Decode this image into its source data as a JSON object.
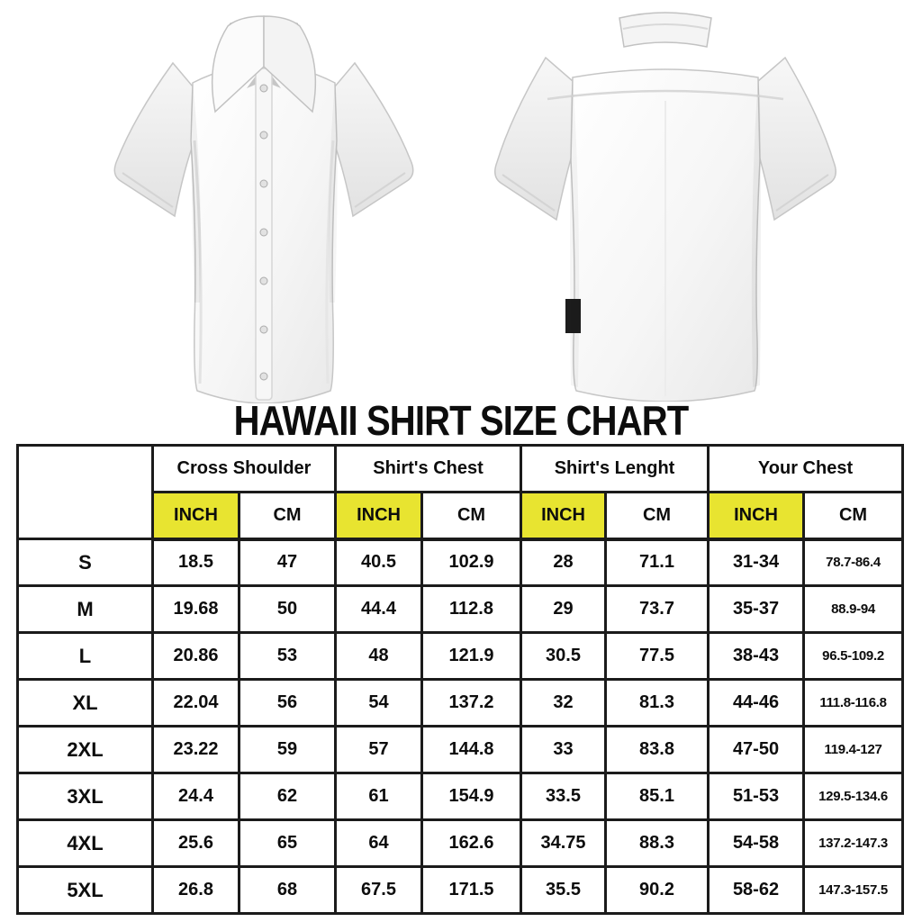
{
  "title": "HAWAII SHIRT SIZE CHART",
  "images": {
    "front_shirt": "white short-sleeve button-up shirt, front view",
    "back_shirt": "white short-sleeve button-up shirt, back view with small black hem tag"
  },
  "colors": {
    "highlight_yellow": "#e8e430",
    "border_black": "#1b1b1b",
    "text_black": "#0d0d0d"
  },
  "chart_data": {
    "type": "table",
    "title": "HAWAII SHIRT SIZE CHART",
    "column_groups": [
      "",
      "Cross Shoulder",
      "Shirt's Chest",
      "Shirt's Lenght",
      "Your Chest"
    ],
    "unit_row": [
      "INCH",
      "CM",
      "INCH",
      "CM",
      "INCH",
      "CM",
      "INCH",
      "CM"
    ],
    "highlighted_unit": "INCH",
    "rows": [
      [
        "S",
        "18.5",
        "47",
        "40.5",
        "102.9",
        "28",
        "71.1",
        "31-34",
        "78.7-86.4"
      ],
      [
        "M",
        "19.68",
        "50",
        "44.4",
        "112.8",
        "29",
        "73.7",
        "35-37",
        "88.9-94"
      ],
      [
        "L",
        "20.86",
        "53",
        "48",
        "121.9",
        "30.5",
        "77.5",
        "38-43",
        "96.5-109.2"
      ],
      [
        "XL",
        "22.04",
        "56",
        "54",
        "137.2",
        "32",
        "81.3",
        "44-46",
        "111.8-116.8"
      ],
      [
        "2XL",
        "23.22",
        "59",
        "57",
        "144.8",
        "33",
        "83.8",
        "47-50",
        "119.4-127"
      ],
      [
        "3XL",
        "24.4",
        "62",
        "61",
        "154.9",
        "33.5",
        "85.1",
        "51-53",
        "129.5-134.6"
      ],
      [
        "4XL",
        "25.6",
        "65",
        "64",
        "162.6",
        "34.75",
        "88.3",
        "54-58",
        "137.2-147.3"
      ],
      [
        "5XL",
        "26.8",
        "68",
        "67.5",
        "171.5",
        "35.5",
        "90.2",
        "58-62",
        "147.3-157.5"
      ]
    ]
  }
}
